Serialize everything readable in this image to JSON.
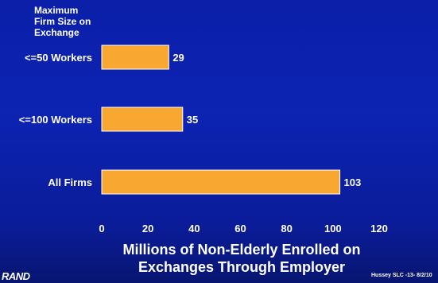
{
  "chart_data": {
    "type": "bar",
    "orientation": "horizontal",
    "categories": [
      "<=50 Workers",
      "<=100 Workers",
      "All Firms"
    ],
    "values": [
      29,
      35,
      103
    ],
    "legend_title": "Maximum\nFirm Size on\nExchange",
    "xlabel": "Millions of Non-Elderly Enrolled on\nExchanges Through Employer",
    "xlim": [
      0,
      120
    ],
    "xticks": [
      0,
      20,
      40,
      60,
      80,
      100,
      120
    ],
    "grid": false,
    "bar_color": "#f8a830",
    "bar_border_color": "#ffffff"
  },
  "footer": {
    "logo": "RAND",
    "note": "Hussey SLC -13-  8/2/10"
  }
}
